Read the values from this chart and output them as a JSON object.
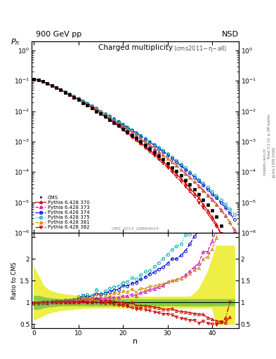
{
  "title_top": "900 GeV pp",
  "title_right": "NSD",
  "main_title": "Charged multiplicity",
  "subtitle": "(cms2011-η-all)",
  "ylabel_main": "$P_n$",
  "ylabel_ratio": "Ratio to CMS",
  "xlabel": "n",
  "rivet_label": "Rivet 3.1.10, ≥ 3M events",
  "arxiv_label": "[arXiv:1306.3436]",
  "mcplots_label": "mcplots.cern.ch",
  "cms_label": "CMS_2011_S8884919",
  "ylim_main": [
    1e-06,
    2.0
  ],
  "ylim_ratio": [
    0.4,
    2.6
  ],
  "xlim": [
    -0.5,
    46
  ],
  "n_values": [
    0,
    1,
    2,
    3,
    4,
    5,
    6,
    7,
    8,
    9,
    10,
    11,
    12,
    13,
    14,
    15,
    16,
    17,
    18,
    19,
    20,
    21,
    22,
    23,
    24,
    25,
    26,
    27,
    28,
    29,
    30,
    31,
    32,
    33,
    34,
    35,
    36,
    37,
    38,
    39,
    40,
    41,
    42,
    43,
    44,
    45
  ],
  "cms_data": [
    0.115,
    0.108,
    0.095,
    0.082,
    0.07,
    0.059,
    0.05,
    0.042,
    0.035,
    0.029,
    0.024,
    0.019,
    0.016,
    0.013,
    0.01,
    0.0083,
    0.0067,
    0.0053,
    0.0042,
    0.0034,
    0.0026,
    0.0021,
    0.0016,
    0.0013,
    0.00098,
    0.00076,
    0.00058,
    0.00045,
    0.00034,
    0.00026,
    0.00019,
    0.00014,
    0.000105,
    7.7e-05,
    5.5e-05,
    3.9e-05,
    2.7e-05,
    1.9e-05,
    1.2e-05,
    8.3e-06,
    5.4e-06,
    3.3e-06,
    1.7e-06,
    8.1e-07,
    2.4e-07,
    null
  ],
  "py370_data": [
    0.113,
    0.106,
    0.094,
    0.081,
    0.07,
    0.059,
    0.05,
    0.042,
    0.035,
    0.029,
    0.024,
    0.02,
    0.016,
    0.013,
    0.011,
    0.0086,
    0.0069,
    0.0055,
    0.0043,
    0.0034,
    0.0026,
    0.002,
    0.0016,
    0.0012,
    0.00091,
    0.0007,
    0.00053,
    0.0004,
    0.0003,
    0.00022,
    0.00016,
    0.00012,
    8.5e-05,
    6.1e-05,
    4.3e-05,
    3e-05,
    2e-05,
    1.4e-05,
    8.7e-06,
    5.4e-06,
    3.3e-06,
    1.9e-06,
    9.5e-07,
    4.3e-07,
    1.6e-07,
    4.9e-08
  ],
  "py373_data": [
    0.113,
    0.106,
    0.094,
    0.082,
    0.07,
    0.06,
    0.051,
    0.043,
    0.036,
    0.03,
    0.025,
    0.021,
    0.017,
    0.014,
    0.011,
    0.009,
    0.0073,
    0.0059,
    0.0047,
    0.0038,
    0.003,
    0.0024,
    0.0019,
    0.0015,
    0.0012,
    0.00095,
    0.00075,
    0.00059,
    0.00046,
    0.00036,
    0.00028,
    0.00021,
    0.00016,
    0.00012,
    9e-05,
    6.7e-05,
    4.9e-05,
    3.6e-05,
    2.6e-05,
    1.8e-05,
    1.3e-05,
    8.8e-06,
    5.8e-06,
    3.7e-06,
    2.2e-06,
    1.2e-06
  ],
  "py374_data": [
    0.112,
    0.105,
    0.094,
    0.082,
    0.071,
    0.061,
    0.052,
    0.044,
    0.037,
    0.031,
    0.026,
    0.022,
    0.018,
    0.015,
    0.012,
    0.0098,
    0.0081,
    0.0066,
    0.0054,
    0.0044,
    0.0036,
    0.0029,
    0.0023,
    0.0019,
    0.0015,
    0.0012,
    0.00096,
    0.00076,
    0.0006,
    0.00047,
    0.00036,
    0.00028,
    0.00021,
    0.00016,
    0.00012,
    9.1e-05,
    6.8e-05,
    5e-05,
    3.7e-05,
    2.7e-05,
    1.9e-05,
    1.4e-05,
    9.7e-06,
    6.7e-06,
    4.4e-06,
    2.8e-06
  ],
  "py375_data": [
    0.112,
    0.105,
    0.094,
    0.082,
    0.071,
    0.061,
    0.052,
    0.044,
    0.037,
    0.031,
    0.027,
    0.022,
    0.019,
    0.015,
    0.013,
    0.01,
    0.0085,
    0.007,
    0.0057,
    0.0047,
    0.0038,
    0.0031,
    0.0025,
    0.002,
    0.0016,
    0.0013,
    0.001,
    0.00082,
    0.00065,
    0.00052,
    0.0004,
    0.00031,
    0.00024,
    0.00018,
    0.00014,
    0.0001,
    7.8e-05,
    5.8e-05,
    4.3e-05,
    3.2e-05,
    2.3e-05,
    1.7e-05,
    1.2e-05,
    8.6e-06,
    6e-06,
    4e-06
  ],
  "py381_data": [
    0.113,
    0.107,
    0.095,
    0.083,
    0.071,
    0.061,
    0.052,
    0.044,
    0.037,
    0.031,
    0.026,
    0.021,
    0.018,
    0.014,
    0.012,
    0.0096,
    0.0078,
    0.0063,
    0.0051,
    0.0041,
    0.0033,
    0.0026,
    0.0021,
    0.0016,
    0.0013,
    0.001,
    0.0008,
    0.00062,
    0.00048,
    0.00037,
    0.00028,
    0.00021,
    0.00016,
    0.00012,
    8.8e-05,
    6.5e-05,
    4.7e-05,
    3.4e-05,
    2.4e-05,
    1.7e-05,
    1.2e-05,
    8.2e-06,
    5.5e-06,
    3.5e-06,
    2.2e-06,
    1.3e-06
  ],
  "py382_data": [
    0.113,
    0.107,
    0.095,
    0.082,
    0.07,
    0.059,
    0.05,
    0.042,
    0.035,
    0.029,
    0.024,
    0.019,
    0.016,
    0.013,
    0.01,
    0.0082,
    0.0065,
    0.0052,
    0.004,
    0.0032,
    0.0024,
    0.0019,
    0.0014,
    0.0011,
    0.00083,
    0.00063,
    0.00047,
    0.00035,
    0.00026,
    0.00019,
    0.00014,
    9.9e-05,
    7e-05,
    4.9e-05,
    3.4e-05,
    2.3e-05,
    1.6e-05,
    1e-05,
    6.8e-06,
    4.3e-06,
    2.7e-06,
    1.6e-06,
    9.3e-07,
    5e-07,
    2.4e-07,
    1e-07
  ],
  "green_band_lo": [
    0.85,
    0.85,
    0.88,
    0.9,
    0.91,
    0.92,
    0.93,
    0.93,
    0.93,
    0.93,
    0.93,
    0.93,
    0.93,
    0.93,
    0.93,
    0.93,
    0.93,
    0.93,
    0.93,
    0.93,
    0.93,
    0.93,
    0.93,
    0.93,
    0.93,
    0.93,
    0.93,
    0.93,
    0.93,
    0.93,
    0.93,
    0.93,
    0.93,
    0.93,
    0.93,
    0.93,
    0.93,
    0.93,
    0.93,
    0.93,
    0.93,
    0.93,
    0.93,
    0.93,
    0.93,
    0.93
  ],
  "green_band_hi": [
    1.15,
    1.15,
    1.12,
    1.1,
    1.09,
    1.08,
    1.07,
    1.07,
    1.07,
    1.07,
    1.07,
    1.07,
    1.07,
    1.07,
    1.07,
    1.07,
    1.07,
    1.07,
    1.07,
    1.07,
    1.07,
    1.07,
    1.07,
    1.07,
    1.07,
    1.07,
    1.07,
    1.07,
    1.07,
    1.07,
    1.07,
    1.07,
    1.07,
    1.07,
    1.07,
    1.07,
    1.07,
    1.07,
    1.07,
    1.07,
    1.07,
    1.07,
    1.07,
    1.07,
    1.07,
    1.07
  ],
  "yellow_band_lo": [
    0.6,
    0.65,
    0.7,
    0.75,
    0.78,
    0.8,
    0.82,
    0.83,
    0.84,
    0.85,
    0.86,
    0.87,
    0.87,
    0.88,
    0.88,
    0.88,
    0.88,
    0.88,
    0.88,
    0.88,
    0.88,
    0.88,
    0.88,
    0.88,
    0.88,
    0.88,
    0.88,
    0.88,
    0.88,
    0.88,
    0.88,
    0.88,
    0.88,
    0.88,
    0.88,
    0.88,
    0.88,
    0.88,
    0.88,
    0.88,
    0.88,
    0.5,
    0.5,
    0.5,
    0.5,
    0.5
  ],
  "yellow_band_hi": [
    1.8,
    1.6,
    1.4,
    1.3,
    1.25,
    1.22,
    1.2,
    1.18,
    1.17,
    1.16,
    1.15,
    1.14,
    1.14,
    1.13,
    1.13,
    1.13,
    1.13,
    1.13,
    1.13,
    1.13,
    1.13,
    1.13,
    1.13,
    1.13,
    1.13,
    1.13,
    1.13,
    1.13,
    1.13,
    1.13,
    1.13,
    1.13,
    1.13,
    1.13,
    1.13,
    1.13,
    1.2,
    1.3,
    1.5,
    1.7,
    2.0,
    2.3,
    2.3,
    2.3,
    2.3,
    2.3
  ],
  "colors": {
    "cms": "#000000",
    "py370": "#cc0000",
    "py373": "#cc00cc",
    "py374": "#0000cc",
    "py375": "#00aaaa",
    "py381": "#cc8800",
    "py382": "#cc0000"
  },
  "green_color": "#88cc44",
  "yellow_color": "#eeee44"
}
